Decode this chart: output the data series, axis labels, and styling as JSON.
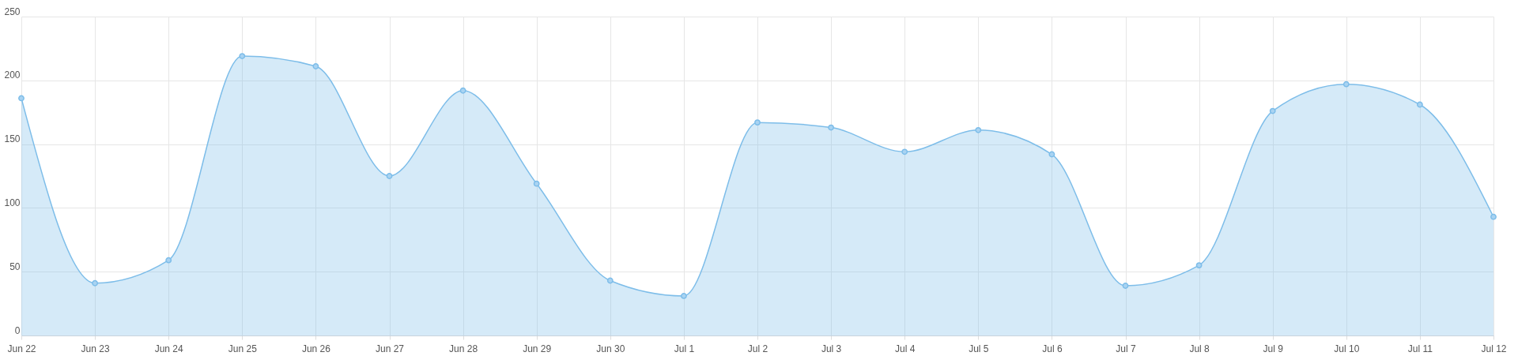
{
  "chart_data": {
    "type": "area",
    "categories": [
      "Jun 22",
      "Jun 23",
      "Jun 24",
      "Jun 25",
      "Jun 26",
      "Jun 27",
      "Jun 28",
      "Jun 29",
      "Jun 30",
      "Jul 1",
      "Jul 2",
      "Jul 3",
      "Jul 4",
      "Jul 5",
      "Jul 6",
      "Jul 7",
      "Jul 8",
      "Jul 9",
      "Jul 10",
      "Jul 11",
      "Jul 12"
    ],
    "series": [
      {
        "color": "#7dbde9",
        "values": [
          186,
          41,
          59,
          219,
          211,
          125,
          192,
          119,
          43,
          31,
          167,
          163,
          144,
          161,
          142,
          39,
          55,
          176,
          197,
          181,
          93
        ]
      }
    ],
    "ylim": [
      0,
      250
    ],
    "yticks": [
      0,
      50,
      100,
      150,
      200,
      250
    ],
    "grid": true,
    "marker": "circle"
  }
}
